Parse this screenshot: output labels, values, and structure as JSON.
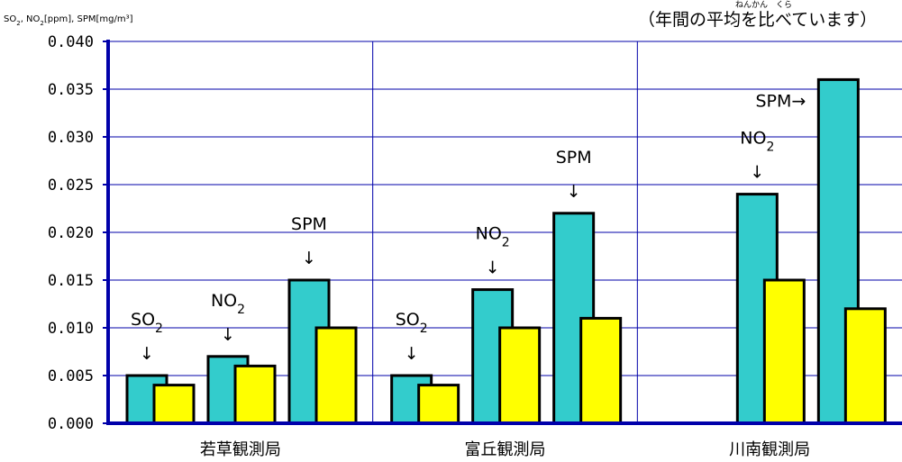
{
  "chart_data": {
    "type": "bar",
    "ylabel": "SO2, NO2[ppm], SPM[mg/m³]",
    "ylim": [
      0,
      0.04
    ],
    "yticks": [
      "0.000",
      "0.005",
      "0.010",
      "0.015",
      "0.020",
      "0.025",
      "0.030",
      "0.035",
      "0.040"
    ],
    "grid": true,
    "note": "（年間の平均を比べています）",
    "note_ruby": "ねんかん　くら",
    "bar_colors": [
      "#33cccc",
      "#ffff00"
    ],
    "categories": [
      "若草観測局",
      "富丘観測局",
      "川南観測局"
    ],
    "groups": [
      {
        "label": "若草観測局",
        "bars": [
          {
            "pollutant": "SO2",
            "values": [
              0.005,
              0.004
            ]
          },
          {
            "pollutant": "NO2",
            "values": [
              0.007,
              0.006
            ]
          },
          {
            "pollutant": "SPM",
            "values": [
              0.015,
              0.01
            ]
          }
        ]
      },
      {
        "label": "富丘観測局",
        "bars": [
          {
            "pollutant": "SO2",
            "values": [
              0.005,
              0.004
            ]
          },
          {
            "pollutant": "NO2",
            "values": [
              0.014,
              0.01
            ]
          },
          {
            "pollutant": "SPM",
            "values": [
              0.022,
              0.011
            ]
          }
        ]
      },
      {
        "label": "川南観測局",
        "bars": [
          {
            "pollutant": "NO2",
            "values": [
              0.024,
              0.015
            ]
          },
          {
            "pollutant": "SPM",
            "values": [
              0.036,
              0.012
            ]
          }
        ]
      }
    ],
    "annotations": [
      {
        "group": 0,
        "pollutant": "SO2",
        "label": "SO",
        "sub": "2",
        "arrow": "↓"
      },
      {
        "group": 0,
        "pollutant": "NO2",
        "label": "NO",
        "sub": "2",
        "arrow": "↓"
      },
      {
        "group": 0,
        "pollutant": "SPM",
        "label": "SPM",
        "sub": "",
        "arrow": "↓"
      },
      {
        "group": 1,
        "pollutant": "SO2",
        "label": "SO",
        "sub": "2",
        "arrow": "↓"
      },
      {
        "group": 1,
        "pollutant": "NO2",
        "label": "NO",
        "sub": "2",
        "arrow": "↓"
      },
      {
        "group": 1,
        "pollutant": "SPM",
        "label": "SPM",
        "sub": "",
        "arrow": "↓"
      },
      {
        "group": 2,
        "pollutant": "NO2",
        "label": "NO",
        "sub": "2",
        "arrow": "↓"
      },
      {
        "group": 2,
        "pollutant": "SPM",
        "label": "SPM",
        "sub": "",
        "arrow": "→"
      }
    ]
  }
}
